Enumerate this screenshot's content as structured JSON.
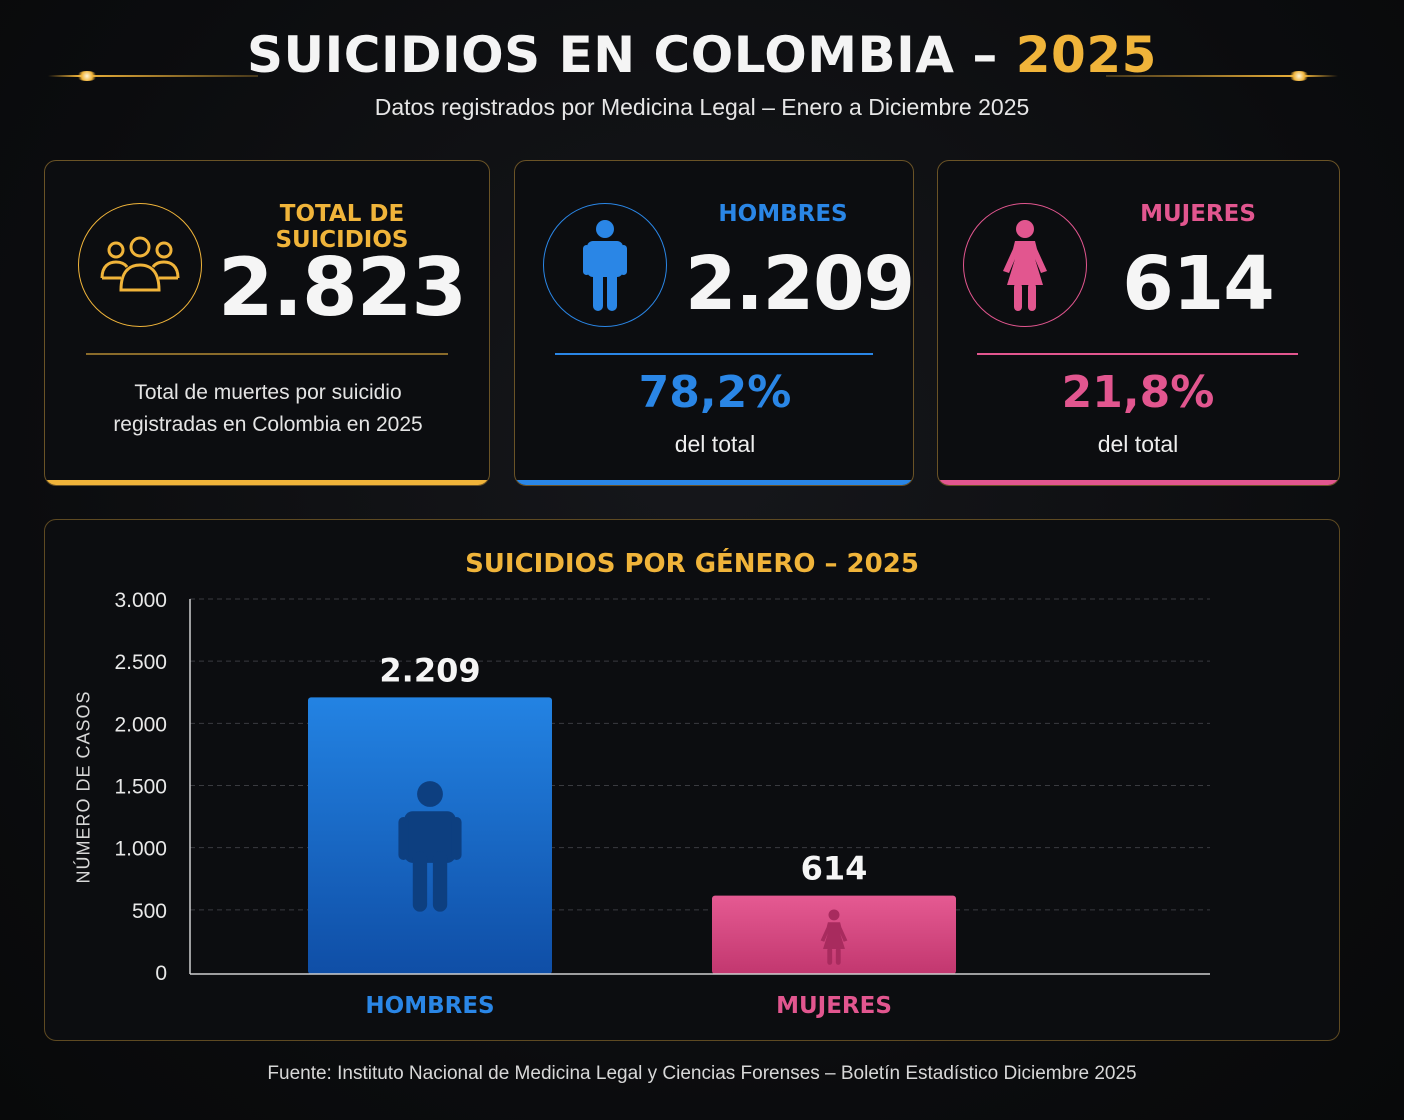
{
  "header": {
    "title_main": "SUICIDIOS EN COLOMBIA – ",
    "title_year": "2025",
    "subtitle": "Datos registrados por Medicina Legal – Enero a Diciembre 2025"
  },
  "colors": {
    "gold": "#f0b43a",
    "blue": "#2a86e6",
    "pink": "#e2568f",
    "background": "#0b0c0e"
  },
  "cards": {
    "total": {
      "icon": "group-icon",
      "label": "TOTAL DE SUICIDIOS",
      "value": "2.823",
      "desc_line1": "Total de muertes por suicidio",
      "desc_line2": "registradas en Colombia en 2025"
    },
    "hombres": {
      "icon": "man-icon",
      "label": "HOMBRES",
      "value": "2.209",
      "pct": "78,2%",
      "pct_label": "del total"
    },
    "mujeres": {
      "icon": "woman-icon",
      "label": "MUJERES",
      "value": "614",
      "pct": "21,8%",
      "pct_label": "del total"
    }
  },
  "chart_data": {
    "type": "bar",
    "title": "SUICIDIOS POR GÉNERO – 2025",
    "ylabel": "NÚMERO DE CASOS",
    "xlabel": "",
    "categories": [
      "HOMBRES",
      "MUJERES"
    ],
    "values": [
      2209,
      614
    ],
    "value_labels": [
      "2.209",
      "614"
    ],
    "colors": [
      "#2a86e6",
      "#e2568f"
    ],
    "bar_icons": [
      "man-icon",
      "woman-icon"
    ],
    "ylim": [
      0,
      3000
    ],
    "yticks": [
      0,
      500,
      1000,
      1500,
      2000,
      2500,
      3000
    ],
    "ytick_labels": [
      "0",
      "500",
      "1.000",
      "1.500",
      "2.000",
      "2.500",
      "3.000"
    ],
    "grid": true
  },
  "footer": "Fuente: Instituto Nacional de Medicina Legal y Ciencias Forenses – Boletín Estadístico Diciembre 2025"
}
